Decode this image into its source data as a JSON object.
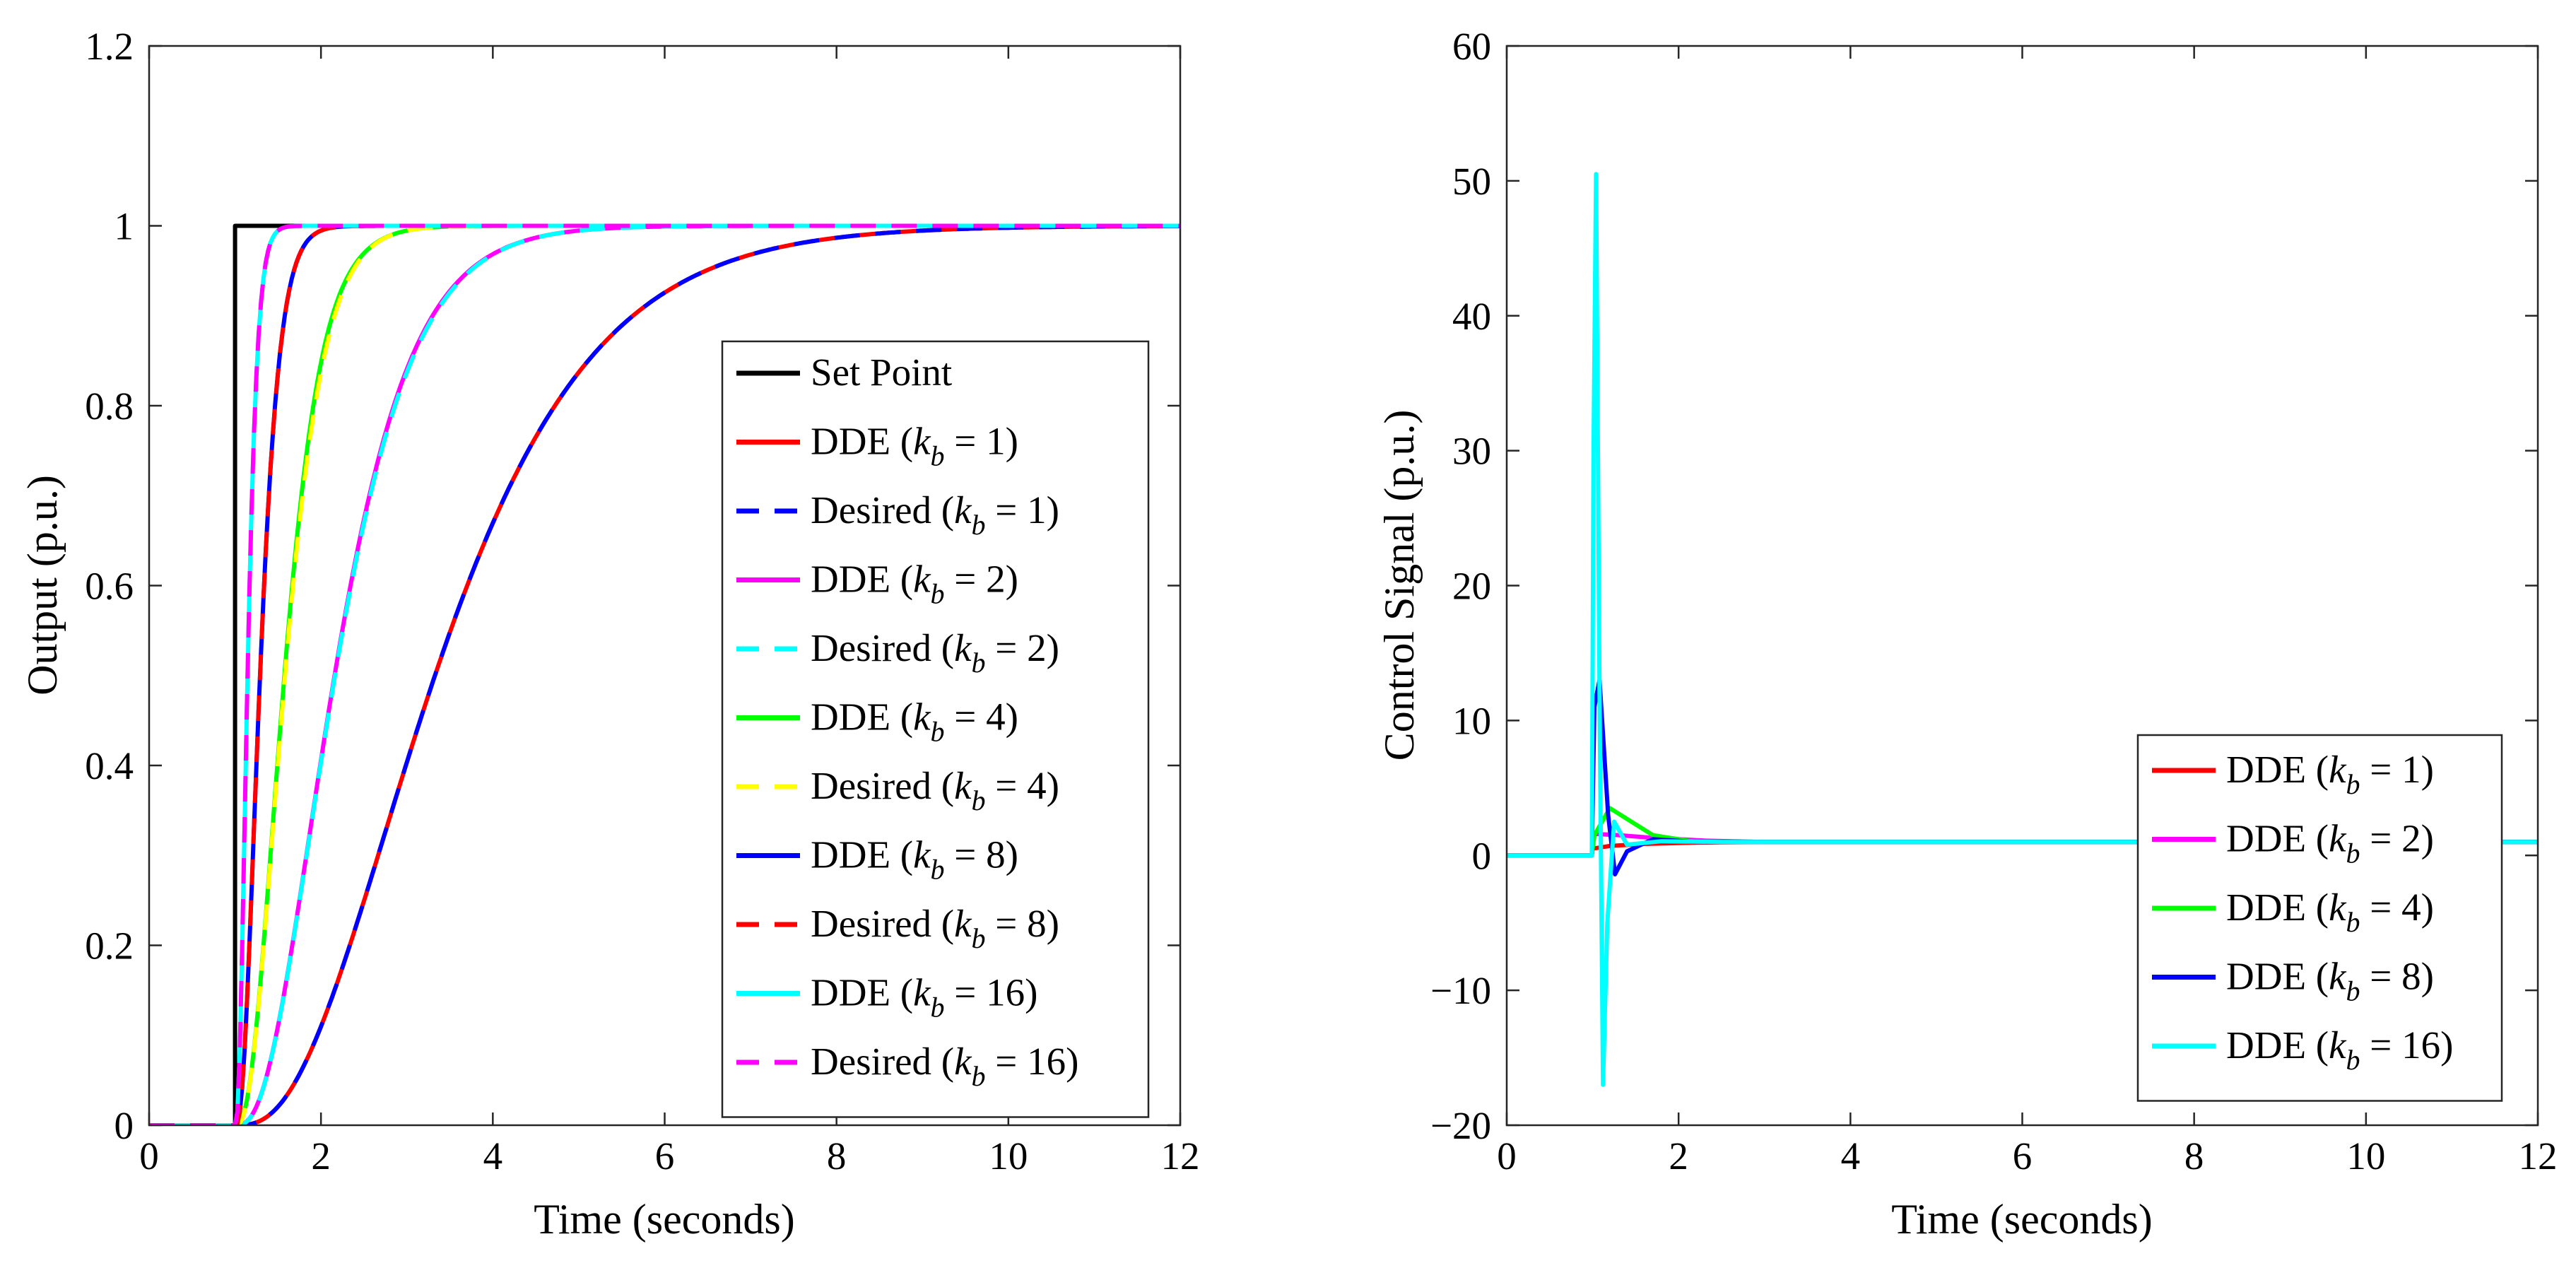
{
  "colors": {
    "black": "#000000",
    "red": "#ff0000",
    "blue": "#0000ff",
    "magenta": "#ff00ff",
    "cyan": "#00ffff",
    "green": "#00ff00",
    "yellow": "#ffff00"
  },
  "chart_data": [
    {
      "type": "line",
      "title": "",
      "xlabel": "Time (seconds)",
      "ylabel": "Output (p.u.)",
      "xlim": [
        0,
        12
      ],
      "ylim": [
        0,
        1.2
      ],
      "xticks": [
        "0",
        "2",
        "4",
        "6",
        "8",
        "10",
        "12"
      ],
      "yticks": [
        "0",
        "0.2",
        "0.4",
        "0.6",
        "0.8",
        "1",
        "1.2"
      ],
      "legend_position": "right",
      "series": [
        {
          "name": "Set Point",
          "kb": "",
          "color": "#000000",
          "dash": false,
          "model": "step"
        },
        {
          "name": "DDE",
          "kb": "1",
          "color": "#ff0000",
          "dash": false,
          "model": "response",
          "k": 1
        },
        {
          "name": "Desired",
          "kb": "1",
          "color": "#0000ff",
          "dash": true,
          "model": "response",
          "k": 1
        },
        {
          "name": "DDE",
          "kb": "2",
          "color": "#ff00ff",
          "dash": false,
          "model": "response",
          "k": 2,
          "overshoot": 0.004
        },
        {
          "name": "Desired",
          "kb": "2",
          "color": "#00ffff",
          "dash": true,
          "model": "response",
          "k": 2
        },
        {
          "name": "DDE",
          "kb": "4",
          "color": "#00ff00",
          "dash": false,
          "model": "response",
          "k": 4,
          "overshoot": 0.012
        },
        {
          "name": "Desired",
          "kb": "4",
          "color": "#ffff00",
          "dash": true,
          "model": "response",
          "k": 4
        },
        {
          "name": "DDE",
          "kb": "8",
          "color": "#0000ff",
          "dash": false,
          "model": "response",
          "k": 8
        },
        {
          "name": "Desired",
          "kb": "8",
          "color": "#ff0000",
          "dash": true,
          "model": "response",
          "k": 8
        },
        {
          "name": "DDE",
          "kb": "16",
          "color": "#00ffff",
          "dash": false,
          "model": "response",
          "k": 16
        },
        {
          "name": "Desired",
          "kb": "16",
          "color": "#ff00ff",
          "dash": true,
          "model": "response",
          "k": 16
        }
      ]
    },
    {
      "type": "line",
      "title": "",
      "xlabel": "Time (seconds)",
      "ylabel": "Control Signal (p.u.)",
      "xlim": [
        0,
        12
      ],
      "ylim": [
        -20,
        60
      ],
      "xticks": [
        "0",
        "2",
        "4",
        "6",
        "8",
        "10",
        "12"
      ],
      "yticks": [
        "−20",
        "−10",
        "0",
        "10",
        "20",
        "30",
        "40",
        "50",
        "60"
      ],
      "legend_position": "bottom-right",
      "series": [
        {
          "name": "DDE",
          "kb": "1",
          "color": "#ff0000",
          "dash": false,
          "points": [
            [
              0,
              0
            ],
            [
              0.99,
              0
            ],
            [
              1.0,
              0.5
            ],
            [
              1.2,
              0.7
            ],
            [
              1.6,
              0.85
            ],
            [
              2.2,
              0.95
            ],
            [
              3,
              1
            ],
            [
              12,
              1
            ]
          ]
        },
        {
          "name": "DDE",
          "kb": "2",
          "color": "#ff00ff",
          "dash": false,
          "points": [
            [
              0,
              0
            ],
            [
              0.99,
              0
            ],
            [
              1.0,
              1.6
            ],
            [
              1.3,
              1.5
            ],
            [
              1.7,
              1.3
            ],
            [
              2.3,
              1.1
            ],
            [
              3,
              1
            ],
            [
              12,
              1
            ]
          ]
        },
        {
          "name": "DDE",
          "kb": "4",
          "color": "#00ff00",
          "dash": false,
          "points": [
            [
              0,
              0
            ],
            [
              0.99,
              0
            ],
            [
              1.02,
              1.5
            ],
            [
              1.2,
              3.5
            ],
            [
              1.4,
              2.7
            ],
            [
              1.7,
              1.5
            ],
            [
              2.2,
              1.0
            ],
            [
              3,
              1
            ],
            [
              12,
              1
            ]
          ]
        },
        {
          "name": "DDE",
          "kb": "8",
          "color": "#0000ff",
          "dash": false,
          "points": [
            [
              0,
              0
            ],
            [
              0.99,
              0
            ],
            [
              1.02,
              11
            ],
            [
              1.08,
              13
            ],
            [
              1.18,
              3
            ],
            [
              1.26,
              -1.4
            ],
            [
              1.4,
              0.3
            ],
            [
              1.7,
              1.2
            ],
            [
              2.2,
              1.0
            ],
            [
              12,
              1
            ]
          ]
        },
        {
          "name": "DDE",
          "kb": "16",
          "color": "#00ffff",
          "dash": false,
          "points": [
            [
              0,
              0
            ],
            [
              0.99,
              0
            ],
            [
              1.01,
              30
            ],
            [
              1.04,
              50.5
            ],
            [
              1.08,
              12
            ],
            [
              1.12,
              -17
            ],
            [
              1.17,
              -5
            ],
            [
              1.25,
              2.5
            ],
            [
              1.4,
              0.8
            ],
            [
              1.8,
              1.05
            ],
            [
              2.5,
              1.0
            ],
            [
              12,
              1
            ]
          ]
        }
      ]
    }
  ]
}
